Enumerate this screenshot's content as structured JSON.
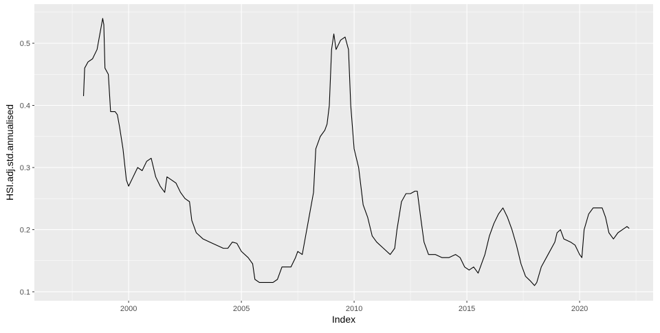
{
  "chart_data": {
    "type": "line",
    "x_label": "Index",
    "y_label": "HSI.adj.std.annualised",
    "color": "#000000",
    "grid": true,
    "xlim": [
      1995.82,
      2023.26
    ],
    "xticks": [
      2000,
      2005,
      2010,
      2015,
      2020
    ],
    "ylim": [
      0.0856,
      0.563
    ],
    "yticks": [
      0.1,
      0.2,
      0.3,
      0.4,
      0.5
    ],
    "x": [
      1998.0,
      1998.05,
      1998.2,
      1998.4,
      1998.6,
      1998.75,
      1998.85,
      1998.9,
      1998.95,
      1999.1,
      1999.2,
      1999.4,
      1999.5,
      1999.6,
      1999.75,
      1999.9,
      2000.0,
      2000.2,
      2000.4,
      2000.6,
      2000.8,
      2001.0,
      2001.2,
      2001.4,
      2001.6,
      2001.7,
      2001.9,
      2002.1,
      2002.3,
      2002.5,
      2002.7,
      2002.8,
      2003.0,
      2003.3,
      2003.6,
      2003.9,
      2004.2,
      2004.4,
      2004.6,
      2004.8,
      2005.0,
      2005.3,
      2005.5,
      2005.6,
      2005.8,
      2006.0,
      2006.4,
      2006.6,
      2006.8,
      2007.0,
      2007.2,
      2007.4,
      2007.5,
      2007.7,
      2007.8,
      2008.0,
      2008.2,
      2008.3,
      2008.5,
      2008.7,
      2008.8,
      2008.9,
      2009.0,
      2009.1,
      2009.2,
      2009.4,
      2009.6,
      2009.75,
      2009.85,
      2010.0,
      2010.2,
      2010.4,
      2010.6,
      2010.8,
      2011.0,
      2011.3,
      2011.6,
      2011.8,
      2011.9,
      2012.1,
      2012.3,
      2012.5,
      2012.7,
      2012.8,
      2012.95,
      2013.1,
      2013.3,
      2013.6,
      2013.9,
      2014.2,
      2014.5,
      2014.7,
      2014.9,
      2015.1,
      2015.3,
      2015.5,
      2015.7,
      2015.8,
      2016.0,
      2016.2,
      2016.4,
      2016.6,
      2016.8,
      2017.0,
      2017.2,
      2017.4,
      2017.6,
      2017.8,
      2018.0,
      2018.1,
      2018.3,
      2018.6,
      2018.9,
      2019.0,
      2019.15,
      2019.3,
      2019.6,
      2019.8,
      2020.0,
      2020.1,
      2020.2,
      2020.4,
      2020.6,
      2020.8,
      2021.0,
      2021.15,
      2021.3,
      2021.5,
      2021.7,
      2021.9,
      2022.1,
      2022.2
    ],
    "values": [
      0.415,
      0.46,
      0.47,
      0.475,
      0.49,
      0.52,
      0.54,
      0.53,
      0.46,
      0.45,
      0.39,
      0.39,
      0.385,
      0.365,
      0.33,
      0.28,
      0.27,
      0.285,
      0.3,
      0.295,
      0.31,
      0.315,
      0.285,
      0.27,
      0.26,
      0.285,
      0.28,
      0.275,
      0.26,
      0.25,
      0.245,
      0.215,
      0.195,
      0.185,
      0.18,
      0.175,
      0.17,
      0.17,
      0.18,
      0.178,
      0.165,
      0.155,
      0.145,
      0.12,
      0.115,
      0.115,
      0.115,
      0.12,
      0.14,
      0.14,
      0.14,
      0.155,
      0.165,
      0.16,
      0.18,
      0.22,
      0.26,
      0.33,
      0.35,
      0.36,
      0.37,
      0.4,
      0.49,
      0.515,
      0.49,
      0.505,
      0.51,
      0.49,
      0.4,
      0.33,
      0.3,
      0.24,
      0.22,
      0.19,
      0.18,
      0.17,
      0.16,
      0.17,
      0.2,
      0.245,
      0.258,
      0.258,
      0.262,
      0.262,
      0.22,
      0.18,
      0.16,
      0.16,
      0.155,
      0.155,
      0.16,
      0.155,
      0.14,
      0.135,
      0.14,
      0.13,
      0.15,
      0.16,
      0.19,
      0.21,
      0.225,
      0.235,
      0.22,
      0.2,
      0.175,
      0.145,
      0.125,
      0.118,
      0.11,
      0.115,
      0.14,
      0.16,
      0.18,
      0.195,
      0.2,
      0.185,
      0.18,
      0.175,
      0.16,
      0.155,
      0.2,
      0.225,
      0.235,
      0.235,
      0.235,
      0.22,
      0.195,
      0.185,
      0.195,
      0.2,
      0.205,
      0.202
    ]
  }
}
